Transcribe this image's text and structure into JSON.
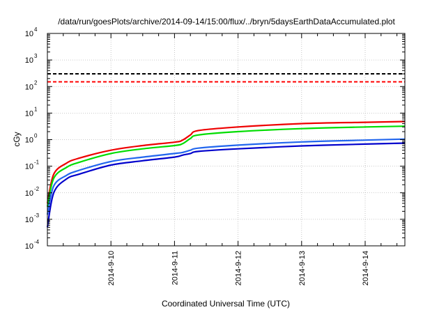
{
  "chart_data": {
    "type": "line",
    "title": "/data/run/goesPlots/archive/2014-09-14/15:00/flux/../bryn/5daysEarthDataAccumulated.plot",
    "xlabel": "Coordinated Universal Time (UTC)",
    "ylabel": "cGy",
    "x_tick_labels": [
      "2014-9-10",
      "2014-9-11",
      "2014-9-12",
      "2014-9-13",
      "2014-9-14"
    ],
    "x_range": [
      "2014-09-09 00:00",
      "2014-09-14 15:00"
    ],
    "y_scale": "log",
    "ylim": [
      0.0001,
      10000
    ],
    "y_ticks": [
      {
        "base": "10",
        "exp": "-4",
        "value": 0.0001
      },
      {
        "base": "10",
        "exp": "-3",
        "value": 0.001
      },
      {
        "base": "10",
        "exp": "-2",
        "value": 0.01
      },
      {
        "base": "10",
        "exp": "-1",
        "value": 0.1
      },
      {
        "base": "10",
        "exp": "0",
        "value": 1
      },
      {
        "base": "10",
        "exp": "1",
        "value": 10
      },
      {
        "base": "10",
        "exp": "2",
        "value": 100
      },
      {
        "base": "10",
        "exp": "3",
        "value": 1000
      },
      {
        "base": "10",
        "exp": "4",
        "value": 10000
      }
    ],
    "grid": true,
    "thresholds": [
      {
        "value": 300,
        "color": "#000000",
        "style": "dashed"
      },
      {
        "value": 150,
        "color": "#ff0000",
        "style": "dashed"
      }
    ],
    "series": [
      {
        "color": "#ee0000",
        "x": [
          "2014-09-09 00:00",
          "2014-09-09 02:24",
          "2014-09-09 07:12",
          "2014-09-09 12:00",
          "2014-09-10 00:00",
          "2014-09-10 12:00",
          "2014-09-11 00:00",
          "2014-09-11 03:00",
          "2014-09-11 06:00",
          "2014-09-11 09:00",
          "2014-09-12 00:00",
          "2014-09-13 00:00",
          "2014-09-14 00:00",
          "2014-09-14 15:00"
        ],
        "y": [
          0.004,
          0.05,
          0.13,
          0.2,
          0.4,
          0.6,
          0.8,
          0.95,
          1.5,
          2.2,
          3.0,
          4.0,
          4.5,
          4.8
        ]
      },
      {
        "color": "#00dd00",
        "x": [
          "2014-09-09 00:00",
          "2014-09-09 02:24",
          "2014-09-09 07:12",
          "2014-09-09 12:00",
          "2014-09-10 00:00",
          "2014-09-10 12:00",
          "2014-09-11 00:00",
          "2014-09-11 03:00",
          "2014-09-11 06:00",
          "2014-09-11 09:00",
          "2014-09-12 00:00",
          "2014-09-13 00:00",
          "2014-09-14 00:00",
          "2014-09-14 15:00"
        ],
        "y": [
          0.003,
          0.035,
          0.09,
          0.14,
          0.3,
          0.45,
          0.6,
          0.7,
          1.1,
          1.5,
          2.0,
          2.6,
          3.0,
          3.2
        ]
      },
      {
        "color": "#2266ee",
        "x": [
          "2014-09-09 00:00",
          "2014-09-09 02:24",
          "2014-09-09 07:12",
          "2014-09-09 12:00",
          "2014-09-10 00:00",
          "2014-09-10 12:00",
          "2014-09-11 00:00",
          "2014-09-11 03:00",
          "2014-09-11 06:00",
          "2014-09-11 09:00",
          "2014-09-12 00:00",
          "2014-09-13 00:00",
          "2014-09-14 00:00",
          "2014-09-14 15:00"
        ],
        "y": [
          0.0015,
          0.018,
          0.045,
          0.07,
          0.15,
          0.22,
          0.3,
          0.33,
          0.4,
          0.48,
          0.62,
          0.82,
          0.96,
          1.05
        ]
      },
      {
        "color": "#0000cc",
        "x": [
          "2014-09-09 00:00",
          "2014-09-09 02:24",
          "2014-09-09 07:12",
          "2014-09-09 12:00",
          "2014-09-10 00:00",
          "2014-09-10 12:00",
          "2014-09-11 00:00",
          "2014-09-11 03:00",
          "2014-09-11 06:00",
          "2014-09-11 09:00",
          "2014-09-12 00:00",
          "2014-09-13 00:00",
          "2014-09-14 00:00",
          "2014-09-14 15:00"
        ],
        "y": [
          0.0005,
          0.01,
          0.033,
          0.05,
          0.11,
          0.16,
          0.22,
          0.26,
          0.3,
          0.36,
          0.45,
          0.58,
          0.68,
          0.74
        ]
      }
    ]
  }
}
